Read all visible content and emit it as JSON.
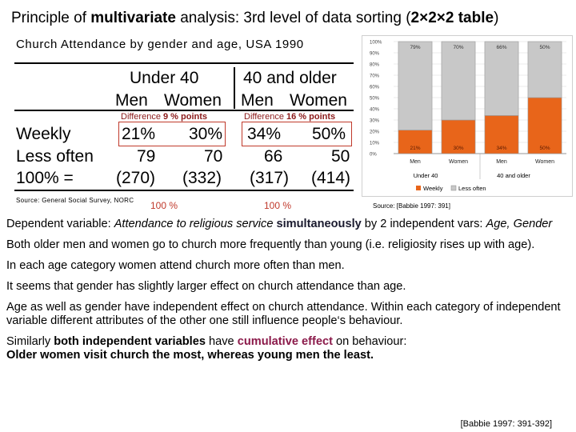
{
  "title": {
    "prefix": "Principle of ",
    "bold1": "multivariate",
    "mid": " analysis: 3rd level of data sorting (",
    "bold2": "2×2×2 table",
    "suffix": ")"
  },
  "subtitle": "Church Attendance by gender and age, USA 1990",
  "table": {
    "group1": "Under 40",
    "group2": "40 and older",
    "cols": [
      "Men",
      "Women",
      "Men",
      "Women"
    ],
    "diff1": {
      "label": "Difference ",
      "value": "9 % points"
    },
    "diff2": {
      "label": "Difference ",
      "value": "16 % points"
    },
    "rows": [
      {
        "label": "Weekly",
        "values": [
          "21%",
          "30%",
          "34%",
          "50%"
        ]
      },
      {
        "label": "Less often",
        "values": [
          "79",
          "70",
          "66",
          "50"
        ]
      },
      {
        "label": "100% =",
        "values": [
          "(270)",
          "(332)",
          "(317)",
          "(414)"
        ]
      }
    ],
    "source": "Source:  General Social Survey, NORC",
    "pct_left": "100 %",
    "pct_right": "100 %"
  },
  "chart_data": {
    "type": "bar",
    "stacked": true,
    "categories": [
      "Men",
      "Women",
      "Men",
      "Women"
    ],
    "groups": [
      "Under 40",
      "40 and older"
    ],
    "series": [
      {
        "name": "Weekly",
        "values": [
          21,
          30,
          34,
          50
        ],
        "color": "#e8651a",
        "labels": [
          "21%",
          "30%",
          "34%",
          "50%"
        ]
      },
      {
        "name": "Less often",
        "values": [
          79,
          70,
          66,
          50
        ],
        "color": "#c8c8c8",
        "labels": [
          "79%",
          "70%",
          "66%",
          "50%"
        ]
      }
    ],
    "yticks": [
      "0%",
      "10%",
      "20%",
      "30%",
      "40%",
      "50%",
      "60%",
      "70%",
      "80%",
      "90%",
      "100%"
    ],
    "ylim": [
      0,
      100
    ],
    "grid": true,
    "legend": "bottom"
  },
  "chart_source": "Source: [Babbie 1997: 391]",
  "body": {
    "p1": {
      "a": "Dependent variable: ",
      "b": "Attendance to religious service",
      "c": " ",
      "d": "simultaneously",
      "e": " by 2 independent vars: ",
      "f": "Age, Gender"
    },
    "p2": "Both older men and women go to church more frequently than young (i.e. religiosity rises up with age).",
    "p3": "In each age category women attend church more often than men.",
    "p4": "It seems that gender has slightly larger effect on church attendance than age.",
    "p5": "Age as well as gender have independent effect on church attendance. Within each category of independent variable different attributes of the other one still influence people‘s behaviour.",
    "p6": {
      "a": "Similarly ",
      "b": "both independent variables",
      "c": " have ",
      "d": "cumulative effect",
      "e": " on behaviour:"
    },
    "p7": " Older women visit church the most, whereas young men the least.",
    "cite": "[Babbie 1997: 391-392]"
  }
}
